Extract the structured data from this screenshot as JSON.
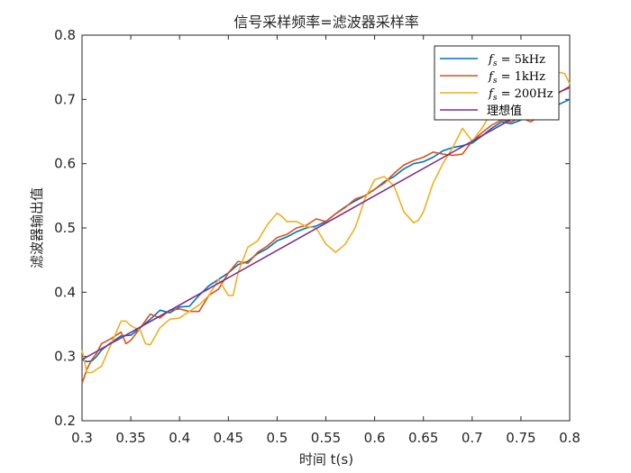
{
  "chart_data": {
    "type": "line",
    "title": "信号采样频率=滤波器采样率",
    "xlabel": "时间 t(s)",
    "ylabel": "滤波器输出值",
    "xlim": [
      0.3,
      0.8
    ],
    "ylim": [
      0.2,
      0.8
    ],
    "xticks": [
      "0.3",
      "0.35",
      "0.4",
      "0.45",
      "0.5",
      "0.55",
      "0.6",
      "0.65",
      "0.7",
      "0.75",
      "0.8"
    ],
    "yticks": [
      "0.2",
      "0.3",
      "0.4",
      "0.5",
      "0.6",
      "0.7",
      "0.8"
    ],
    "grid": false,
    "legend_position": "top-right",
    "series": [
      {
        "name": "fs = 5kHz",
        "legend_label": "= 5kHz",
        "color": "#0072BD",
        "x": [
          0.3,
          0.305,
          0.31,
          0.315,
          0.32,
          0.33,
          0.34,
          0.35,
          0.36,
          0.37,
          0.38,
          0.39,
          0.4,
          0.41,
          0.42,
          0.43,
          0.44,
          0.45,
          0.46,
          0.47,
          0.48,
          0.49,
          0.5,
          0.51,
          0.52,
          0.53,
          0.54,
          0.55,
          0.56,
          0.57,
          0.58,
          0.59,
          0.6,
          0.61,
          0.62,
          0.63,
          0.64,
          0.65,
          0.66,
          0.67,
          0.68,
          0.69,
          0.7,
          0.71,
          0.72,
          0.73,
          0.74,
          0.75,
          0.76,
          0.77,
          0.78,
          0.79,
          0.8
        ],
        "y": [
          0.295,
          0.292,
          0.293,
          0.3,
          0.31,
          0.322,
          0.332,
          0.333,
          0.345,
          0.358,
          0.372,
          0.368,
          0.377,
          0.378,
          0.395,
          0.41,
          0.42,
          0.43,
          0.443,
          0.448,
          0.46,
          0.468,
          0.48,
          0.486,
          0.494,
          0.5,
          0.503,
          0.51,
          0.522,
          0.533,
          0.542,
          0.55,
          0.56,
          0.572,
          0.58,
          0.592,
          0.6,
          0.603,
          0.61,
          0.62,
          0.625,
          0.628,
          0.632,
          0.643,
          0.655,
          0.665,
          0.662,
          0.668,
          0.672,
          0.678,
          0.685,
          0.693,
          0.7
        ]
      },
      {
        "name": "fs = 1kHz",
        "legend_label": "= 1kHz",
        "color": "#D95319",
        "x": [
          0.3,
          0.305,
          0.31,
          0.315,
          0.32,
          0.33,
          0.34,
          0.345,
          0.35,
          0.36,
          0.37,
          0.38,
          0.39,
          0.4,
          0.41,
          0.42,
          0.43,
          0.44,
          0.45,
          0.46,
          0.47,
          0.48,
          0.49,
          0.5,
          0.51,
          0.52,
          0.53,
          0.54,
          0.55,
          0.56,
          0.57,
          0.58,
          0.59,
          0.6,
          0.61,
          0.62,
          0.63,
          0.64,
          0.65,
          0.66,
          0.67,
          0.68,
          0.69,
          0.7,
          0.71,
          0.72,
          0.73,
          0.74,
          0.75,
          0.76,
          0.77,
          0.78,
          0.79,
          0.8
        ],
        "y": [
          0.258,
          0.28,
          0.295,
          0.305,
          0.32,
          0.328,
          0.338,
          0.32,
          0.325,
          0.345,
          0.366,
          0.36,
          0.372,
          0.374,
          0.37,
          0.37,
          0.395,
          0.405,
          0.43,
          0.448,
          0.445,
          0.462,
          0.472,
          0.485,
          0.49,
          0.5,
          0.504,
          0.514,
          0.51,
          0.522,
          0.532,
          0.545,
          0.55,
          0.56,
          0.57,
          0.585,
          0.598,
          0.605,
          0.61,
          0.618,
          0.615,
          0.613,
          0.615,
          0.635,
          0.648,
          0.66,
          0.668,
          0.665,
          0.672,
          0.665,
          0.675,
          0.69,
          0.712,
          0.718
        ]
      },
      {
        "name": "fs = 200Hz",
        "legend_label": "= 200Hz",
        "color": "#EDB120",
        "x": [
          0.3,
          0.305,
          0.31,
          0.32,
          0.33,
          0.34,
          0.345,
          0.35,
          0.36,
          0.365,
          0.37,
          0.38,
          0.39,
          0.4,
          0.41,
          0.42,
          0.43,
          0.44,
          0.45,
          0.455,
          0.46,
          0.47,
          0.48,
          0.49,
          0.5,
          0.505,
          0.51,
          0.52,
          0.53,
          0.54,
          0.55,
          0.56,
          0.57,
          0.58,
          0.59,
          0.6,
          0.61,
          0.62,
          0.63,
          0.64,
          0.645,
          0.65,
          0.66,
          0.67,
          0.68,
          0.69,
          0.7,
          0.71,
          0.72,
          0.73,
          0.74,
          0.75,
          0.76,
          0.77,
          0.78,
          0.785,
          0.79,
          0.795,
          0.8
        ],
        "y": [
          0.31,
          0.275,
          0.275,
          0.285,
          0.32,
          0.355,
          0.355,
          0.348,
          0.34,
          0.32,
          0.318,
          0.345,
          0.358,
          0.36,
          0.37,
          0.38,
          0.395,
          0.42,
          0.395,
          0.395,
          0.43,
          0.47,
          0.48,
          0.505,
          0.523,
          0.518,
          0.51,
          0.51,
          0.502,
          0.5,
          0.475,
          0.462,
          0.475,
          0.5,
          0.545,
          0.575,
          0.58,
          0.565,
          0.525,
          0.508,
          0.512,
          0.525,
          0.57,
          0.6,
          0.625,
          0.655,
          0.635,
          0.655,
          0.68,
          0.7,
          0.682,
          0.668,
          0.672,
          0.675,
          0.705,
          0.738,
          0.742,
          0.74,
          0.724
        ]
      },
      {
        "name": "理想值",
        "legend_label": "理想值",
        "color": "#7E2F8E",
        "x": [
          0.3,
          0.8
        ],
        "y": [
          0.295,
          0.72
        ]
      }
    ]
  }
}
